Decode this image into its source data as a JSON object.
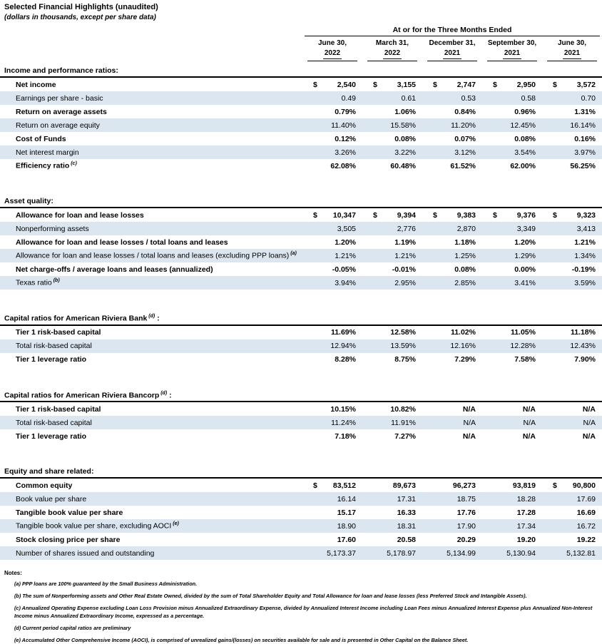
{
  "title": "Selected Financial Highlights (unaudited)",
  "subtitle": "(dollars in thousands, except per share data)",
  "table": {
    "period_header": "At or for the Three Months Ended",
    "columns": [
      {
        "date": "June 30,",
        "year": "2022"
      },
      {
        "date": "March 31,",
        "year": "2022"
      },
      {
        "date": "December 31,",
        "year": "2021"
      },
      {
        "date": "September 30,",
        "year": "2021"
      },
      {
        "date": "June 30,",
        "year": "2021"
      }
    ],
    "sections": [
      {
        "heading": "Income and performance ratios:",
        "heading_sup": "",
        "rows": [
          {
            "label": "Net income",
            "sup": "",
            "bold": true,
            "dollars": [
              true,
              true,
              true,
              true,
              true
            ],
            "values": [
              "2,540",
              "3,155",
              "2,747",
              "2,950",
              "3,572"
            ]
          },
          {
            "label": "Earnings per share - basic",
            "sup": "",
            "bold": false,
            "dollars": [
              false,
              false,
              false,
              false,
              false
            ],
            "values": [
              "0.49",
              "0.61",
              "0.53",
              "0.58",
              "0.70"
            ]
          },
          {
            "label": "Return on average assets",
            "sup": "",
            "bold": true,
            "dollars": [
              false,
              false,
              false,
              false,
              false
            ],
            "values": [
              "0.79%",
              "1.06%",
              "0.84%",
              "0.96%",
              "1.31%"
            ]
          },
          {
            "label": "Return on average equity",
            "sup": "",
            "bold": false,
            "dollars": [
              false,
              false,
              false,
              false,
              false
            ],
            "values": [
              "11.40%",
              "15.58%",
              "11.20%",
              "12.45%",
              "16.14%"
            ]
          },
          {
            "label": "Cost of Funds",
            "sup": "",
            "bold": true,
            "dollars": [
              false,
              false,
              false,
              false,
              false
            ],
            "values": [
              "0.12%",
              "0.08%",
              "0.07%",
              "0.08%",
              "0.16%"
            ]
          },
          {
            "label": "Net interest margin",
            "sup": "",
            "bold": false,
            "dollars": [
              false,
              false,
              false,
              false,
              false
            ],
            "values": [
              "3.26%",
              "3.22%",
              "3.12%",
              "3.54%",
              "3.97%"
            ]
          },
          {
            "label": "Efficiency ratio",
            "sup": "(c)",
            "bold": true,
            "dollars": [
              false,
              false,
              false,
              false,
              false
            ],
            "values": [
              "62.08%",
              "60.48%",
              "61.52%",
              "62.00%",
              "56.25%"
            ]
          }
        ]
      },
      {
        "heading": "Asset quality:",
        "heading_sup": "",
        "rows": [
          {
            "label": "Allowance for loan and lease losses",
            "sup": "",
            "bold": true,
            "dollars": [
              true,
              true,
              true,
              true,
              true
            ],
            "values": [
              "10,347",
              "9,394",
              "9,383",
              "9,376",
              "9,323"
            ]
          },
          {
            "label": "Nonperforming assets",
            "sup": "",
            "bold": false,
            "dollars": [
              false,
              false,
              false,
              false,
              false
            ],
            "values": [
              "3,505",
              "2,776",
              "2,870",
              "3,349",
              "3,413"
            ]
          },
          {
            "label": "Allowance for loan and lease losses / total loans and leases",
            "sup": "",
            "bold": true,
            "dollars": [
              false,
              false,
              false,
              false,
              false
            ],
            "values": [
              "1.20%",
              "1.19%",
              "1.18%",
              "1.20%",
              "1.21%"
            ]
          },
          {
            "label": "Allowance for loan and lease losses / total loans and leases (excluding PPP loans)",
            "sup": "(a)",
            "bold": false,
            "dollars": [
              false,
              false,
              false,
              false,
              false
            ],
            "values": [
              "1.21%",
              "1.21%",
              "1.25%",
              "1.29%",
              "1.34%"
            ]
          },
          {
            "label": "Net charge-offs / average loans and leases (annualized)",
            "sup": "",
            "bold": true,
            "dollars": [
              false,
              false,
              false,
              false,
              false
            ],
            "values": [
              "-0.05%",
              "-0.01%",
              "0.08%",
              "0.00%",
              "-0.19%"
            ]
          },
          {
            "label": "Texas ratio",
            "sup": "(b)",
            "bold": false,
            "dollars": [
              false,
              false,
              false,
              false,
              false
            ],
            "values": [
              "3.94%",
              "2.95%",
              "2.85%",
              "3.41%",
              "3.59%"
            ]
          }
        ]
      },
      {
        "heading": "Capital ratios for American Riviera Bank",
        "heading_sup": "(d)",
        "heading_post": ":",
        "rows": [
          {
            "label": "Tier 1 risk-based capital",
            "sup": "",
            "bold": true,
            "dollars": [
              false,
              false,
              false,
              false,
              false
            ],
            "values": [
              "11.69%",
              "12.58%",
              "11.02%",
              "11.05%",
              "11.18%"
            ]
          },
          {
            "label": "Total risk-based capital",
            "sup": "",
            "bold": false,
            "dollars": [
              false,
              false,
              false,
              false,
              false
            ],
            "values": [
              "12.94%",
              "13.59%",
              "12.16%",
              "12.28%",
              "12.43%"
            ]
          },
          {
            "label": "Tier 1 leverage ratio",
            "sup": "",
            "bold": true,
            "dollars": [
              false,
              false,
              false,
              false,
              false
            ],
            "values": [
              "8.28%",
              "8.75%",
              "7.29%",
              "7.58%",
              "7.90%"
            ]
          }
        ]
      },
      {
        "heading": "Capital ratios for American Riviera Bancorp",
        "heading_sup": "(d)",
        "heading_post": ":",
        "rows": [
          {
            "label": "Tier 1 risk-based capital",
            "sup": "",
            "bold": true,
            "dollars": [
              false,
              false,
              false,
              false,
              false
            ],
            "values": [
              "10.15%",
              "10.82%",
              "N/A",
              "N/A",
              "N/A"
            ]
          },
          {
            "label": "Total risk-based capital",
            "sup": "",
            "bold": false,
            "dollars": [
              false,
              false,
              false,
              false,
              false
            ],
            "values": [
              "11.24%",
              "11.91%",
              "N/A",
              "N/A",
              "N/A"
            ]
          },
          {
            "label": "Tier 1 leverage ratio",
            "sup": "",
            "bold": true,
            "dollars": [
              false,
              false,
              false,
              false,
              false
            ],
            "values": [
              "7.18%",
              "7.27%",
              "N/A",
              "N/A",
              "N/A"
            ]
          }
        ]
      },
      {
        "heading": "Equity and share related:",
        "heading_sup": "",
        "rows": [
          {
            "label": "Common equity",
            "sup": "",
            "bold": true,
            "dollars": [
              true,
              false,
              false,
              false,
              true
            ],
            "values": [
              "83,512",
              "89,673",
              "96,273",
              "93,819",
              "90,800"
            ]
          },
          {
            "label": "Book value per share",
            "sup": "",
            "bold": false,
            "dollars": [
              false,
              false,
              false,
              false,
              false
            ],
            "values": [
              "16.14",
              "17.31",
              "18.75",
              "18.28",
              "17.69"
            ]
          },
          {
            "label": "Tangible book value per share",
            "sup": "",
            "bold": true,
            "dollars": [
              false,
              false,
              false,
              false,
              false
            ],
            "values": [
              "15.17",
              "16.33",
              "17.76",
              "17.28",
              "16.69"
            ]
          },
          {
            "label": "Tangible book value per share, excluding AOCI",
            "sup": "(e)",
            "bold": false,
            "dollars": [
              false,
              false,
              false,
              false,
              false
            ],
            "values": [
              "18.90",
              "18.31",
              "17.90",
              "17.34",
              "16.72"
            ]
          },
          {
            "label": "Stock closing price per share",
            "sup": "",
            "bold": true,
            "dollars": [
              false,
              false,
              false,
              false,
              false
            ],
            "values": [
              "17.60",
              "20.58",
              "20.29",
              "19.20",
              "19.22"
            ]
          },
          {
            "label": "Number of shares issued and outstanding",
            "sup": "",
            "bold": false,
            "dollars": [
              false,
              false,
              false,
              false,
              false
            ],
            "values": [
              "5,173.37",
              "5,178.97",
              "5,134.99",
              "5,130.94",
              "5,132.81"
            ]
          }
        ]
      }
    ]
  },
  "notes": {
    "heading": "Notes:",
    "items": [
      {
        "marker": "(a)",
        "text": "PPP loans are 100% guaranteed by the Small Business Administration."
      },
      {
        "marker": "(b)",
        "text": "The sum of Nonperforming assets and Other Real Estate Owned, divided by the sum of Total Shareholder Equity and Total Allowance for loan and lease losses (less Preferred Stock and Intangible Assets)."
      },
      {
        "marker": "(c)",
        "text": "Annualized Operating Expense excluding Loan Loss Provision minus Annualized Extraordinary Expense, divided by Annualized Interest Income including Loan Fees minus Annualized Interest Expense plus Annualized Non-Interest Income minus Annualized Extraordinary Income, expressed as a percentage."
      },
      {
        "marker": "(d)",
        "text": "Current period capital ratios are preliminary"
      },
      {
        "marker": "(e)",
        "text": "Accumulated Other Comprehensive Income (AOCI), is comprised of unrealized gains/(losses) on securities available for sale and is presented in Other Capital on the Balance Sheet."
      }
    ]
  }
}
